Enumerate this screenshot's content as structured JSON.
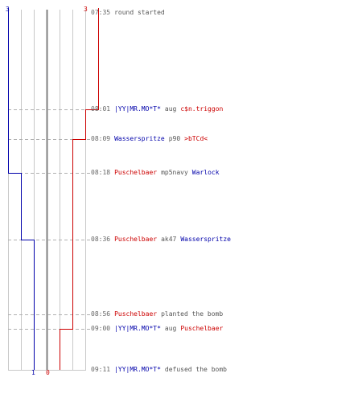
{
  "score": {
    "blue_start": "3",
    "red_start": "3",
    "blue_end": "1",
    "red_end": "0"
  },
  "timeline": {
    "start": "07:35",
    "end": "09:11"
  },
  "colors": {
    "blue": "#0000aa",
    "red": "#cc0000",
    "text": "#555555",
    "time": "#666666",
    "grid": "#c8c8c8",
    "center": "#808080",
    "dash": "#b0b0b0"
  },
  "events": [
    {
      "time": "07:35",
      "parts": [
        {
          "text": "round started",
          "team": "none"
        }
      ],
      "blue": 3,
      "red": 3
    },
    {
      "time": "08:01",
      "parts": [
        {
          "text": "|YY|MR.MO*T*",
          "team": "blue"
        },
        {
          "text": "aug",
          "team": "none"
        },
        {
          "text": "c$n.triggon",
          "team": "red"
        }
      ],
      "blue": 3,
      "red": 2
    },
    {
      "time": "08:09",
      "parts": [
        {
          "text": "Wasserspritze",
          "team": "blue"
        },
        {
          "text": "p90",
          "team": "none"
        },
        {
          "text": ">bTCd<",
          "team": "red"
        }
      ],
      "blue": 3,
      "red": 1
    },
    {
      "time": "08:18",
      "parts": [
        {
          "text": "Puschelbaer",
          "team": "red"
        },
        {
          "text": "mp5navy",
          "team": "none"
        },
        {
          "text": "Warlock",
          "team": "blue"
        }
      ],
      "blue": 2,
      "red": 1
    },
    {
      "time": "08:36",
      "parts": [
        {
          "text": "Puschelbaer",
          "team": "red"
        },
        {
          "text": "ak47",
          "team": "none"
        },
        {
          "text": "Wasserspritze",
          "team": "blue"
        }
      ],
      "blue": 1,
      "red": 1
    },
    {
      "time": "08:56",
      "parts": [
        {
          "text": "Puschelbaer",
          "team": "red"
        },
        {
          "text": "planted the bomb",
          "team": "none"
        }
      ],
      "blue": 1,
      "red": 1
    },
    {
      "time": "09:00",
      "parts": [
        {
          "text": "|YY|MR.MO*T*",
          "team": "blue"
        },
        {
          "text": "aug",
          "team": "none"
        },
        {
          "text": "Puschelbaer",
          "team": "red"
        }
      ],
      "blue": 1,
      "red": 0
    },
    {
      "time": "09:11",
      "parts": [
        {
          "text": "|YY|MR.MO*T*",
          "team": "blue"
        },
        {
          "text": "defused the bomb",
          "team": "none"
        }
      ],
      "blue": 1,
      "red": 0
    }
  ]
}
